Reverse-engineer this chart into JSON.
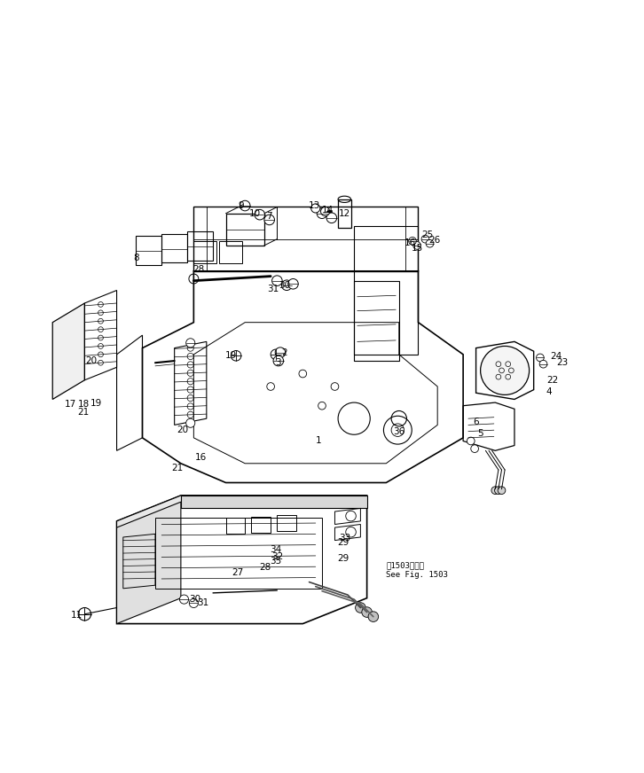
{
  "bg_color": "#ffffff",
  "line_color": "#000000",
  "fig_width": 7.26,
  "fig_height": 8.72,
  "dpi": 100,
  "note_text1": "第1503図参照",
  "note_text2": "See Fig. 1503"
}
